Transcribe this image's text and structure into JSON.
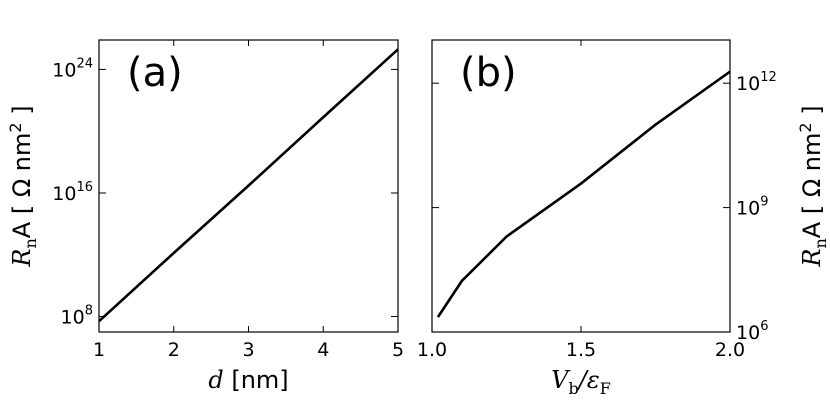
{
  "chart_data": [
    {
      "type": "line",
      "panel_label": "(a)",
      "log_y": true,
      "color": "#000000",
      "y_axis_side": "left",
      "xlabel": {
        "var": "d",
        "rest": " [nm]"
      },
      "ylabel": {
        "main": "R",
        "sub": "n",
        "after": "A [ Ω nm",
        "sup": "2",
        "end": " ]"
      },
      "x": [
        1,
        2,
        3,
        4,
        5
      ],
      "values": [
        50000000.0,
        1300000000000.0,
        3e+16,
        8e+20,
        2e+25
      ],
      "xlim": [
        1,
        5
      ],
      "xticks": [
        1,
        2,
        3,
        4,
        5
      ],
      "ylim": [
        10000000.0,
        8e+25
      ],
      "yticks": [
        {
          "value": 100000000.0,
          "label": "10",
          "sup": "8"
        },
        {
          "value": 1e+16,
          "label": "10",
          "sup": "16"
        },
        {
          "value": 1e+24,
          "label": "10",
          "sup": "24"
        }
      ]
    },
    {
      "type": "line",
      "panel_label": "(b)",
      "log_y": true,
      "color": "#000000",
      "y_axis_side": "right",
      "xlabel": {
        "var": "V",
        "sub": "b",
        "mid": "/ε",
        "sub2": "F"
      },
      "ylabel": {
        "main": "R",
        "sub": "n",
        "after": "A [ Ω nm",
        "sup": "2",
        "end": " ]"
      },
      "x": [
        1.02,
        1.1,
        1.25,
        1.5,
        1.75,
        2.0
      ],
      "values": [
        2300000.0,
        17000000.0,
        200000000.0,
        3800000000.0,
        100000000000.0,
        1900000000000.0
      ],
      "xlim": [
        1.0,
        2.0
      ],
      "xticks": [
        {
          "value": 1.0,
          "label": "1.0"
        },
        {
          "value": 1.5,
          "label": "1.5"
        },
        {
          "value": 2.0,
          "label": "2.0"
        }
      ],
      "ylim": [
        1000000.0,
        11000000000000.0
      ],
      "yticks": [
        {
          "value": 1000000.0,
          "label": "10",
          "sup": "6"
        },
        {
          "value": 1000000000.0,
          "label": "10",
          "sup": "9"
        },
        {
          "value": 1000000000000.0,
          "label": "10",
          "sup": "12"
        }
      ]
    }
  ]
}
